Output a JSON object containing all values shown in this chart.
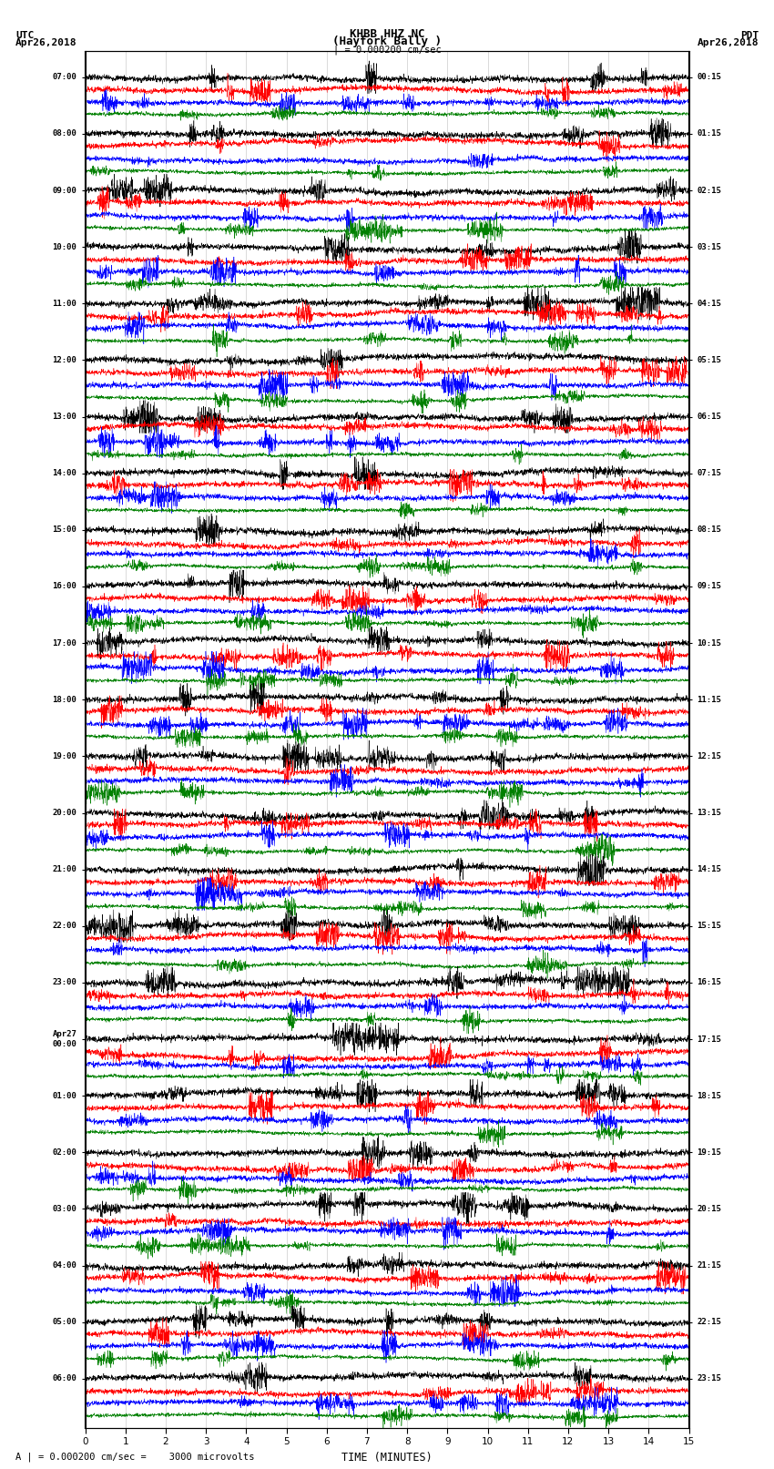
{
  "title_line1": "KHBB HHZ NC",
  "title_line2": "(Hayfork Bally )",
  "title_line3": "| = 0.000200 cm/sec",
  "left_header_line1": "UTC",
  "left_header_line2": "Apr26,2018",
  "right_header_line1": "PDT",
  "right_header_line2": "Apr26,2018",
  "xlabel": "TIME (MINUTES)",
  "footer": "A | = 0.000200 cm/sec =    3000 microvolts",
  "x_min": 0,
  "x_max": 15,
  "x_ticks": [
    0,
    1,
    2,
    3,
    4,
    5,
    6,
    7,
    8,
    9,
    10,
    11,
    12,
    13,
    14,
    15
  ],
  "colors": [
    "black",
    "red",
    "blue",
    "green"
  ],
  "background_color": "white",
  "traces_per_group": 4,
  "utc_labels": [
    "07:00",
    "08:00",
    "09:00",
    "10:00",
    "11:00",
    "12:00",
    "13:00",
    "14:00",
    "15:00",
    "16:00",
    "17:00",
    "18:00",
    "19:00",
    "20:00",
    "21:00",
    "22:00",
    "23:00",
    "Apr27\n00:00",
    "01:00",
    "02:00",
    "03:00",
    "04:00",
    "05:00",
    "06:00"
  ],
  "pdt_labels": [
    "00:15",
    "01:15",
    "02:15",
    "03:15",
    "04:15",
    "05:15",
    "06:15",
    "07:15",
    "08:15",
    "09:15",
    "10:15",
    "11:15",
    "12:15",
    "13:15",
    "14:15",
    "15:15",
    "16:15",
    "17:15",
    "18:15",
    "19:15",
    "20:15",
    "21:15",
    "22:15",
    "23:15"
  ],
  "fig_width": 8.5,
  "fig_height": 16.13,
  "dpi": 100
}
